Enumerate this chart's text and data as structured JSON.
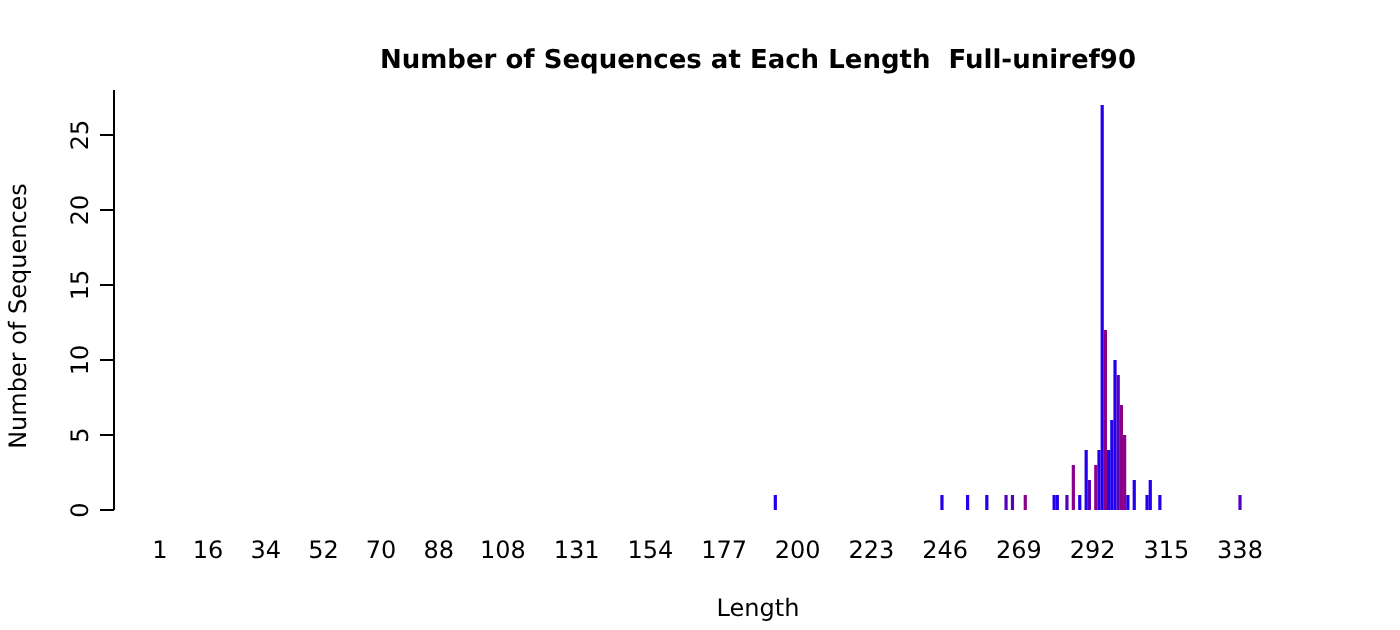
{
  "chart_data": {
    "type": "bar",
    "title": "Number of Sequences at Each Length  Full-uniref90",
    "xlabel": "Length",
    "ylabel": "Number of Sequences",
    "x": [
      193,
      245,
      253,
      259,
      265,
      267,
      271,
      280,
      281,
      284,
      286,
      288,
      290,
      291,
      293,
      294,
      295,
      296,
      297,
      298,
      299,
      300,
      301,
      302,
      303,
      305,
      309,
      310,
      313,
      338
    ],
    "values": [
      1,
      1,
      1,
      1,
      1,
      1,
      1,
      1,
      1,
      1,
      3,
      1,
      4,
      2,
      3,
      4,
      27,
      12,
      4,
      6,
      10,
      9,
      7,
      5,
      1,
      2,
      1,
      2,
      1,
      1
    ],
    "colors": [
      "#2200ee",
      "#2200ee",
      "#2200ee",
      "#2200ee",
      "#5500bb",
      "#5500bb",
      "#8b008b",
      "#2200ee",
      "#2200ee",
      "#5500bb",
      "#8b008b",
      "#2200ee",
      "#2200ee",
      "#5500bb",
      "#8b008b",
      "#2200ee",
      "#2200ee",
      "#8b008b",
      "#2200ee",
      "#2200ee",
      "#2200ee",
      "#5500bb",
      "#8b008b",
      "#8b008b",
      "#2200ee",
      "#2200ee",
      "#2200ee",
      "#2200ee",
      "#2200ee",
      "#5500bb"
    ],
    "xlim": [
      1,
      338
    ],
    "xticks": [
      1,
      16,
      34,
      52,
      70,
      88,
      108,
      131,
      154,
      177,
      200,
      223,
      246,
      269,
      292,
      315,
      338
    ],
    "ylim": [
      0,
      28
    ],
    "yticks": [
      0,
      5,
      10,
      15,
      20,
      25
    ],
    "grid": false
  }
}
